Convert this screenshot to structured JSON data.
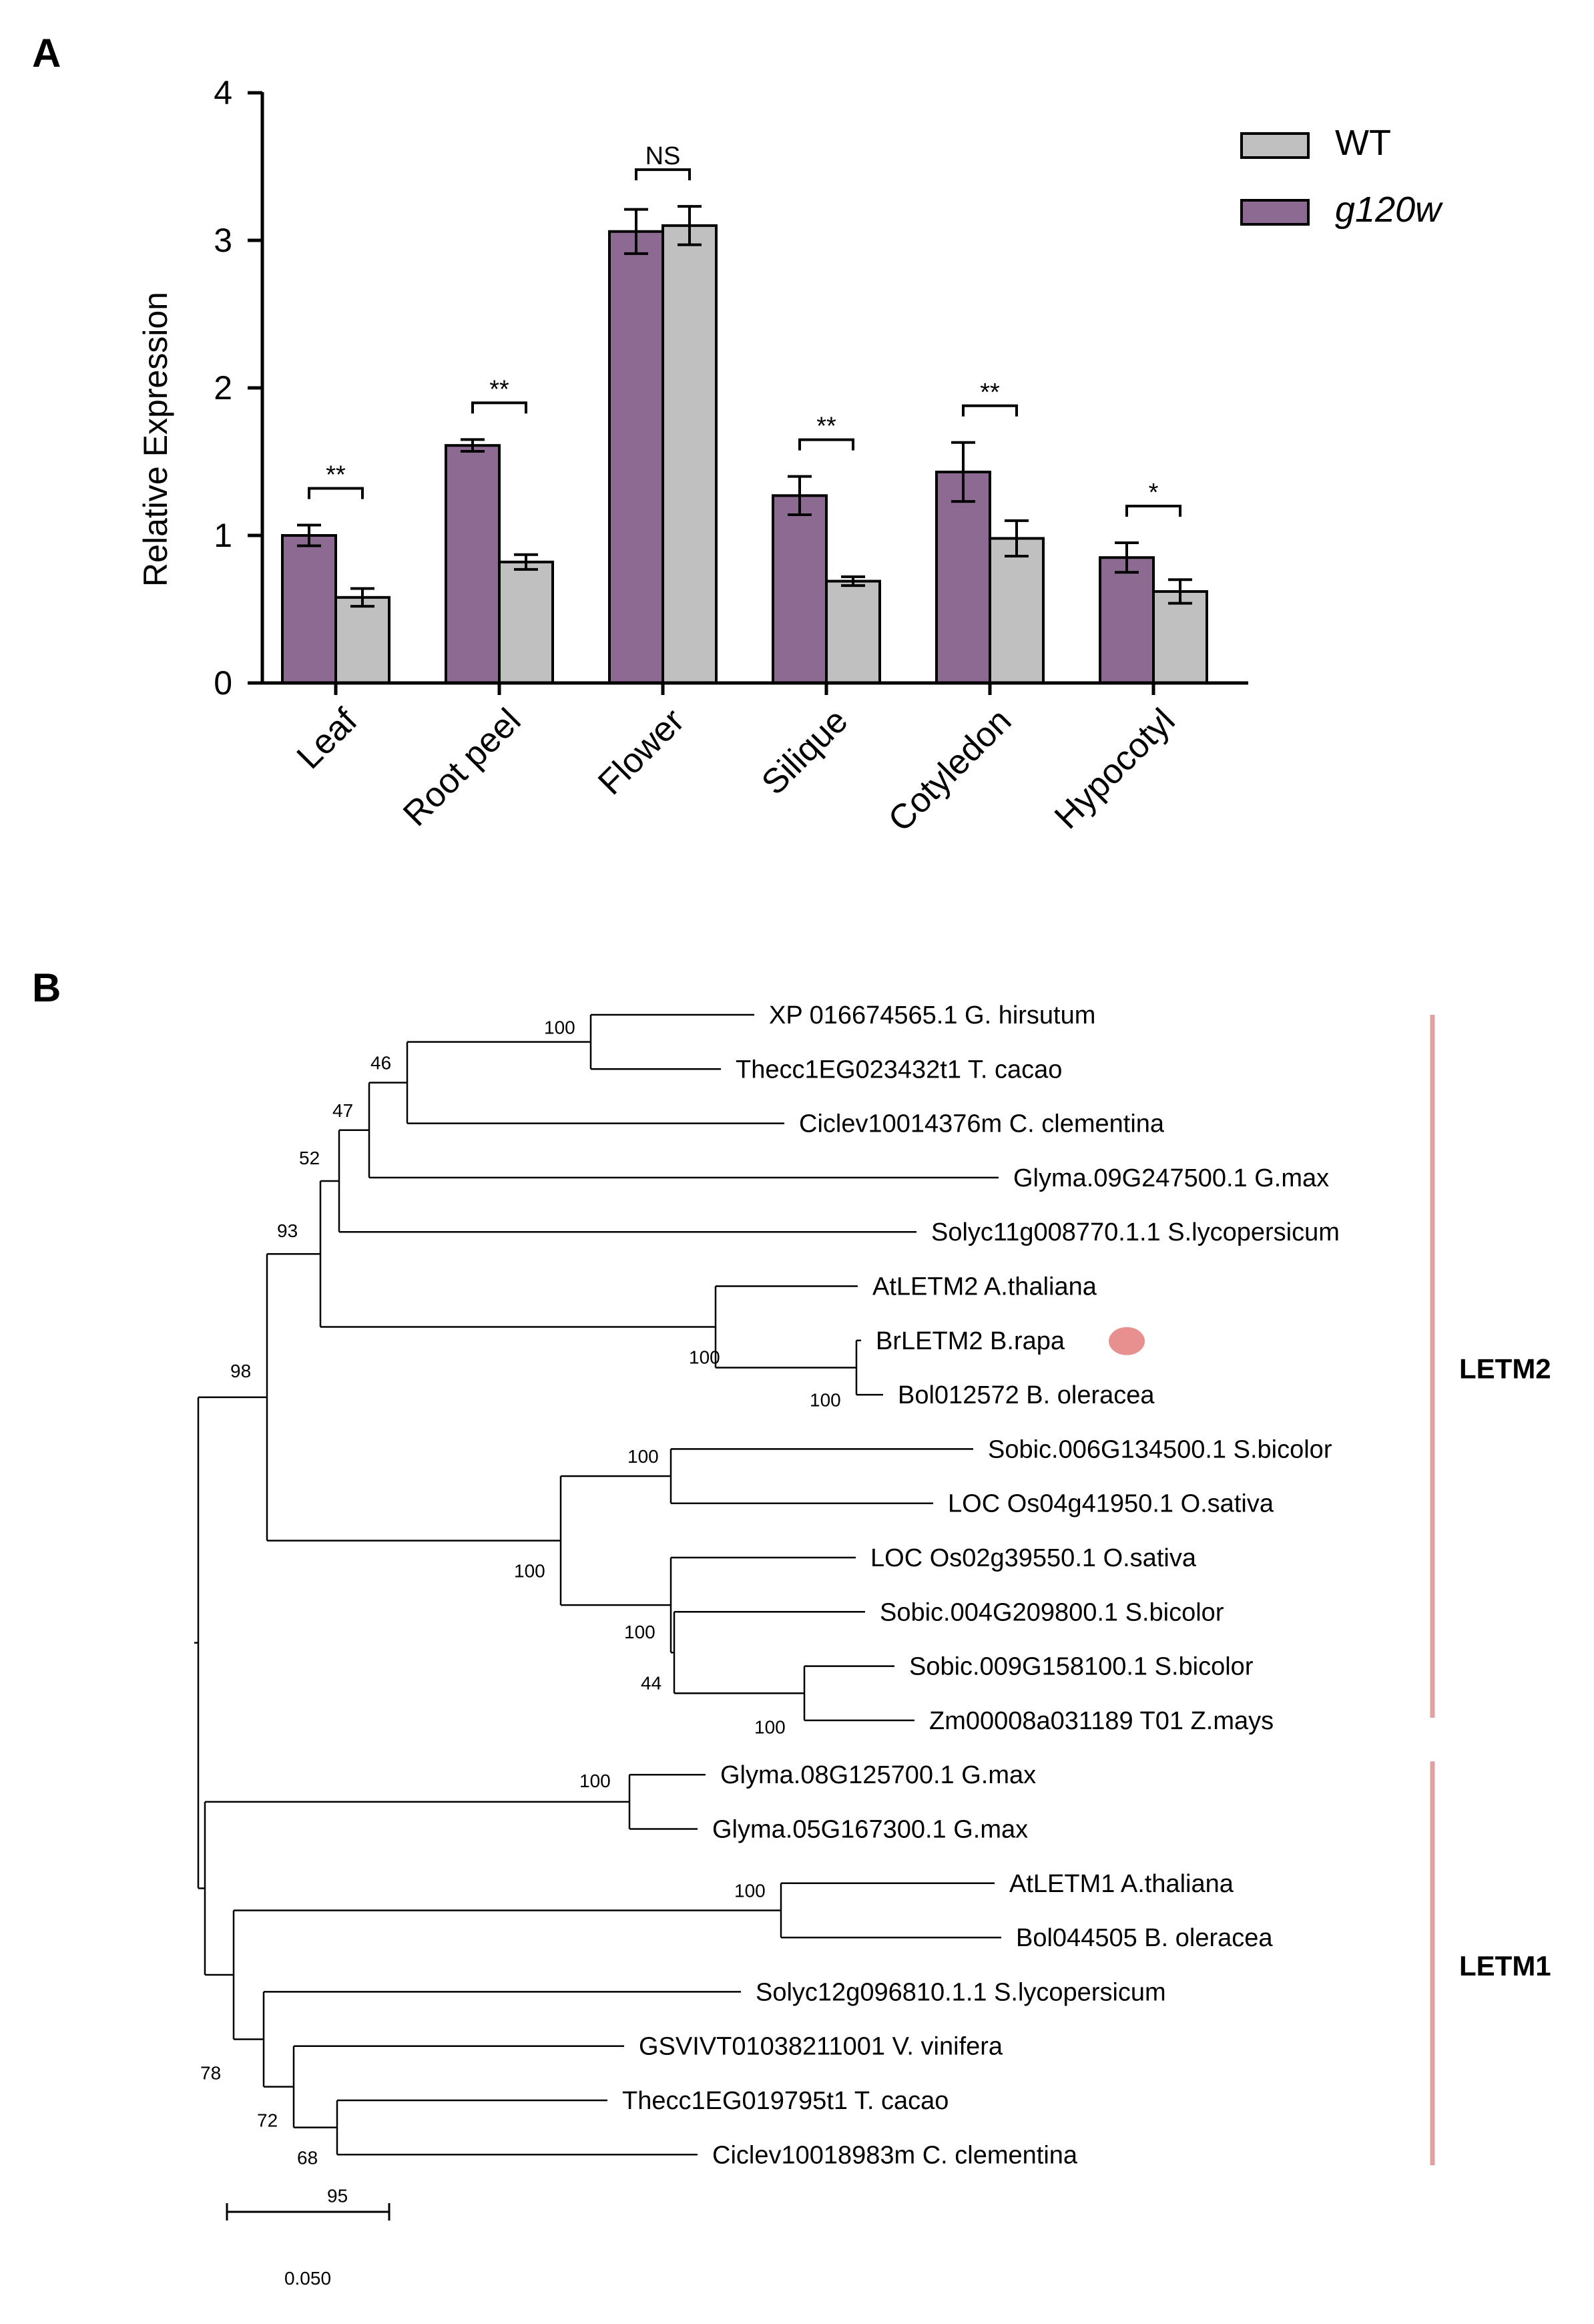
{
  "panel_a_label": "A",
  "panel_b_label": "B",
  "chart_data": [
    {
      "type": "bar",
      "title": "",
      "xlabel": "",
      "ylabel": "Relative Expression",
      "ylim": [
        0,
        4
      ],
      "yticks": [
        "0",
        "1",
        "2",
        "3",
        "4"
      ],
      "categories": [
        "Leaf",
        "Root peel",
        "Flower",
        "Silique",
        "Cotyledon",
        "Hypocotyl"
      ],
      "series": [
        {
          "name": "g120w",
          "color": "#8c6a91",
          "values": [
            1.0,
            1.61,
            3.06,
            1.27,
            1.43,
            0.85
          ],
          "errors": [
            0.07,
            0.04,
            0.15,
            0.13,
            0.2,
            0.1
          ]
        },
        {
          "name": "WT",
          "color": "#c0c0c0",
          "values": [
            0.58,
            0.82,
            3.1,
            0.69,
            0.98,
            0.62
          ],
          "errors": [
            0.06,
            0.05,
            0.13,
            0.03,
            0.12,
            0.08
          ]
        }
      ],
      "legend": [
        {
          "label": "WT",
          "color": "#c0c0c0"
        },
        {
          "label": "g120w",
          "color": "#8c6a91",
          "italic": true
        }
      ],
      "significance": [
        "**",
        "**",
        "NS",
        "**",
        "**",
        "*"
      ],
      "legend_position": "top-right"
    },
    {
      "type": "phylogenetic_tree",
      "leaves": [
        "XP 016674565.1 G. hirsutum",
        "Thecc1EG023432t1 T. cacao",
        "Ciclev10014376m C. clementina",
        "Glyma.09G247500.1 G.max",
        "Solyc11g008770.1.1 S.lycopersicum",
        "AtLETM2 A.thaliana",
        "BrLETM2 B.rapa",
        "Bol012572 B. oleracea",
        "Sobic.006G134500.1 S.bicolor",
        "LOC Os04g41950.1 O.sativa",
        "LOC Os02g39550.1 O.sativa",
        "Sobic.004G209800.1 S.bicolor",
        "Sobic.009G158100.1 S.bicolor",
        "Zm00008a031189 T01 Z.mays",
        "Glyma.08G125700.1 G.max",
        "Glyma.05G167300.1 G.max",
        "AtLETM1 A.thaliana",
        "Bol044505 B. oleracea",
        "Solyc12g096810.1.1 S.lycopersicum",
        "GSVIVT01038211001 V. vinifera",
        "Thecc1EG019795t1 T. cacao",
        "Ciclev10018983m C. clementina"
      ],
      "bootstrap_values": [
        "100",
        "46",
        "47",
        "52",
        "93",
        "98",
        "100",
        "100",
        "100",
        "100",
        "100",
        "44",
        "100",
        "100",
        "100",
        "78",
        "72",
        "68",
        "95"
      ],
      "clades": [
        "LETM2",
        "LETM1"
      ],
      "highlighted_leaf": "BrLETM2 B.rapa",
      "highlight_color": "#e8908f",
      "clade_bar_color": "#e0a0a0",
      "scale_bar_label": "0.050"
    }
  ]
}
